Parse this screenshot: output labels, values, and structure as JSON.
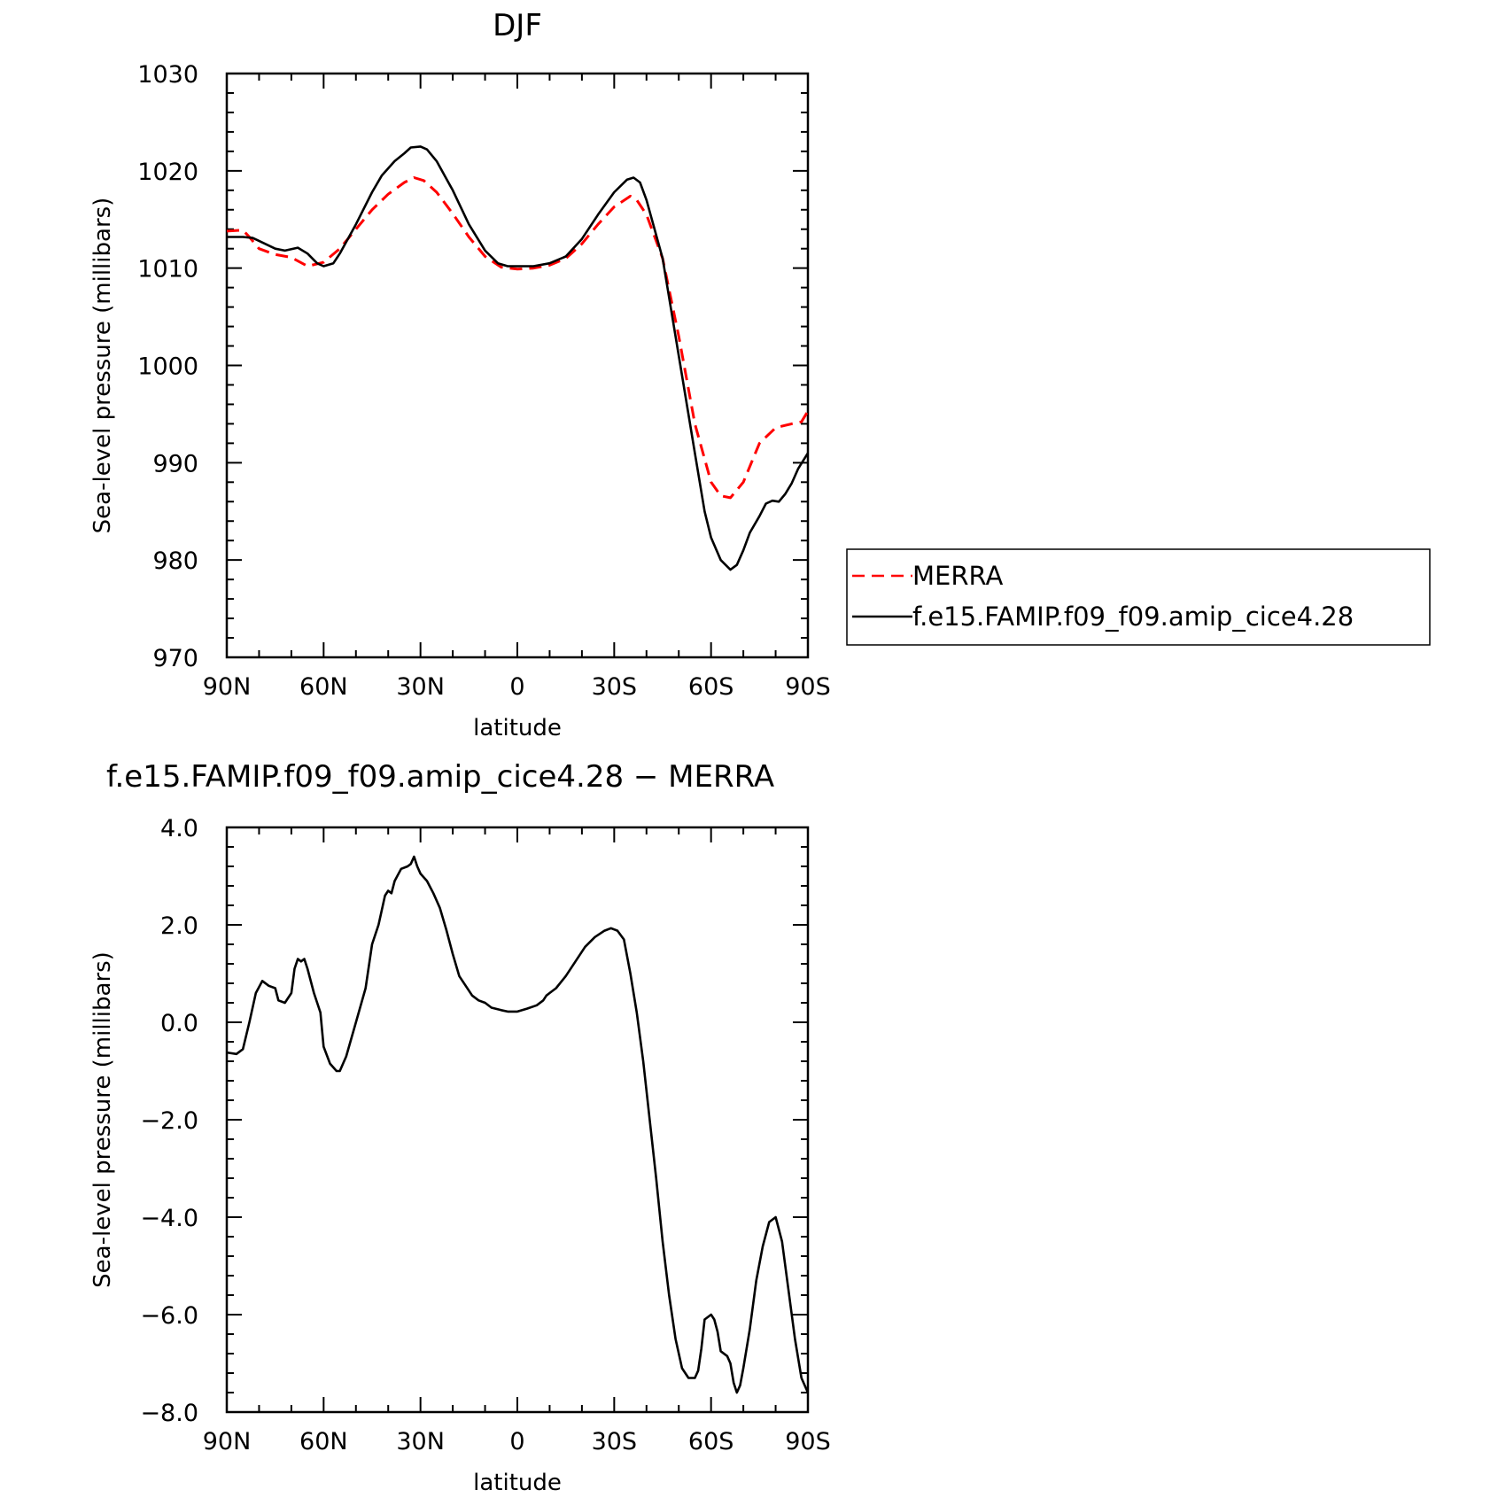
{
  "chart_data": [
    {
      "type": "line",
      "title": "DJF",
      "xlabel": "latitude",
      "ylabel": "Sea-level pressure (millibars)",
      "xlim": [
        90,
        -90
      ],
      "ylim": [
        970,
        1030
      ],
      "x_ticks": [
        90,
        60,
        30,
        0,
        -30,
        -60,
        -90
      ],
      "x_tick_labels": [
        "90N",
        "60N",
        "30N",
        "0",
        "30S",
        "60S",
        "90S"
      ],
      "y_ticks": [
        970,
        980,
        990,
        1000,
        1010,
        1020,
        1030
      ],
      "y_tick_labels": [
        "970",
        "980",
        "990",
        "1000",
        "1010",
        "1020",
        "1030"
      ],
      "grid": false,
      "legend": {
        "placement": "outside-right",
        "entries": [
          "MERRA",
          "f.e15.FAMIP.f09_f09.amip_cice4.28"
        ]
      },
      "series": [
        {
          "name": "MERRA",
          "color": "#ff0000",
          "style": "dashed",
          "points": [
            [
              90,
              1013.8
            ],
            [
              85,
              1013.9
            ],
            [
              83,
              1013.2
            ],
            [
              80,
              1012.0
            ],
            [
              75,
              1011.4
            ],
            [
              70,
              1011.1
            ],
            [
              65,
              1010.2
            ],
            [
              60,
              1010.6
            ],
            [
              55,
              1012.0
            ],
            [
              50,
              1014.0
            ],
            [
              45,
              1016.0
            ],
            [
              40,
              1017.6
            ],
            [
              35,
              1018.8
            ],
            [
              32,
              1019.3
            ],
            [
              29,
              1019.0
            ],
            [
              25,
              1017.8
            ],
            [
              20,
              1015.6
            ],
            [
              15,
              1013.2
            ],
            [
              10,
              1011.2
            ],
            [
              5,
              1010.1
            ],
            [
              0,
              1009.9
            ],
            [
              -5,
              1010.0
            ],
            [
              -10,
              1010.3
            ],
            [
              -15,
              1011.0
            ],
            [
              -20,
              1012.5
            ],
            [
              -25,
              1014.5
            ],
            [
              -30,
              1016.3
            ],
            [
              -35,
              1017.4
            ],
            [
              -37,
              1017.0
            ],
            [
              -40,
              1015.5
            ],
            [
              -45,
              1011.0
            ],
            [
              -50,
              1003.0
            ],
            [
              -55,
              994.0
            ],
            [
              -60,
              988.0
            ],
            [
              -63,
              986.6
            ],
            [
              -66,
              986.4
            ],
            [
              -70,
              988.0
            ],
            [
              -75,
              992.0
            ],
            [
              -80,
              993.6
            ],
            [
              -85,
              994.0
            ],
            [
              -88,
              994.2
            ],
            [
              -90,
              995.3
            ]
          ]
        },
        {
          "name": "f.e15.FAMIP.f09_f09.amip_cice4.28",
          "color": "#000000",
          "style": "solid",
          "points": [
            [
              90,
              1013.2
            ],
            [
              85,
              1013.2
            ],
            [
              82,
              1013.1
            ],
            [
              80,
              1012.8
            ],
            [
              75,
              1012.0
            ],
            [
              72,
              1011.8
            ],
            [
              68,
              1012.1
            ],
            [
              65,
              1011.5
            ],
            [
              62,
              1010.5
            ],
            [
              60,
              1010.2
            ],
            [
              57,
              1010.5
            ],
            [
              55,
              1011.5
            ],
            [
              50,
              1014.5
            ],
            [
              45,
              1017.8
            ],
            [
              42,
              1019.5
            ],
            [
              38,
              1021.0
            ],
            [
              35,
              1021.8
            ],
            [
              33,
              1022.4
            ],
            [
              30,
              1022.5
            ],
            [
              28,
              1022.2
            ],
            [
              25,
              1021.0
            ],
            [
              20,
              1018.0
            ],
            [
              15,
              1014.5
            ],
            [
              10,
              1011.8
            ],
            [
              6,
              1010.5
            ],
            [
              3,
              1010.2
            ],
            [
              0,
              1010.2
            ],
            [
              -5,
              1010.2
            ],
            [
              -10,
              1010.5
            ],
            [
              -15,
              1011.2
            ],
            [
              -20,
              1013.0
            ],
            [
              -25,
              1015.5
            ],
            [
              -30,
              1017.8
            ],
            [
              -34,
              1019.1
            ],
            [
              -36,
              1019.3
            ],
            [
              -38,
              1018.8
            ],
            [
              -40,
              1017.0
            ],
            [
              -45,
              1011.0
            ],
            [
              -50,
              1001.0
            ],
            [
              -55,
              991.0
            ],
            [
              -58,
              985.0
            ],
            [
              -60,
              982.3
            ],
            [
              -63,
              980.0
            ],
            [
              -66,
              979.0
            ],
            [
              -68,
              979.5
            ],
            [
              -70,
              981.0
            ],
            [
              -72,
              982.8
            ],
            [
              -75,
              984.5
            ],
            [
              -77,
              985.8
            ],
            [
              -79,
              986.1
            ],
            [
              -81,
              986.0
            ],
            [
              -83,
              986.8
            ],
            [
              -85,
              987.9
            ],
            [
              -87,
              989.4
            ],
            [
              -90,
              991.0
            ]
          ]
        }
      ]
    },
    {
      "type": "line",
      "title": "f.e15.FAMIP.f09_f09.amip_cice4.28 − MERRA",
      "xlabel": "latitude",
      "ylabel": "Sea-level pressure (millibars)",
      "xlim": [
        90,
        -90
      ],
      "ylim": [
        -8.0,
        4.0
      ],
      "x_ticks": [
        90,
        60,
        30,
        0,
        -30,
        -60,
        -90
      ],
      "x_tick_labels": [
        "90N",
        "60N",
        "30N",
        "0",
        "30S",
        "60S",
        "90S"
      ],
      "y_ticks": [
        -8,
        -6,
        -4,
        -2,
        0,
        2,
        4
      ],
      "y_tick_labels": [
        "−8.0",
        "−6.0",
        "−4.0",
        "−2.0",
        "0.0",
        "2.0",
        "4.0"
      ],
      "grid": false,
      "series": [
        {
          "color": "#000000",
          "style": "solid",
          "points": [
            [
              90,
              -0.62
            ],
            [
              87,
              -0.65
            ],
            [
              85,
              -0.55
            ],
            [
              83,
              0.0
            ],
            [
              81,
              0.6
            ],
            [
              79,
              0.85
            ],
            [
              77,
              0.75
            ],
            [
              75,
              0.7
            ],
            [
              74,
              0.45
            ],
            [
              72,
              0.4
            ],
            [
              70,
              0.6
            ],
            [
              69,
              1.1
            ],
            [
              68,
              1.3
            ],
            [
              67,
              1.25
            ],
            [
              66,
              1.3
            ],
            [
              65,
              1.1
            ],
            [
              63,
              0.6
            ],
            [
              61,
              0.2
            ],
            [
              60,
              -0.5
            ],
            [
              58,
              -0.85
            ],
            [
              56,
              -1.0
            ],
            [
              55,
              -1.0
            ],
            [
              53,
              -0.7
            ],
            [
              50,
              0.0
            ],
            [
              47,
              0.7
            ],
            [
              45,
              1.6
            ],
            [
              43,
              2.0
            ],
            [
              41,
              2.6
            ],
            [
              40,
              2.7
            ],
            [
              39,
              2.65
            ],
            [
              38,
              2.9
            ],
            [
              36,
              3.15
            ],
            [
              34,
              3.2
            ],
            [
              33,
              3.25
            ],
            [
              32,
              3.4
            ],
            [
              31,
              3.2
            ],
            [
              30,
              3.05
            ],
            [
              28,
              2.9
            ],
            [
              26,
              2.65
            ],
            [
              24,
              2.35
            ],
            [
              22,
              1.9
            ],
            [
              20,
              1.4
            ],
            [
              18,
              0.95
            ],
            [
              16,
              0.75
            ],
            [
              14,
              0.55
            ],
            [
              12,
              0.45
            ],
            [
              10,
              0.4
            ],
            [
              8,
              0.3
            ],
            [
              5,
              0.25
            ],
            [
              3,
              0.22
            ],
            [
              0,
              0.22
            ],
            [
              -3,
              0.28
            ],
            [
              -6,
              0.35
            ],
            [
              -8,
              0.45
            ],
            [
              -9,
              0.55
            ],
            [
              -10,
              0.6
            ],
            [
              -12,
              0.7
            ],
            [
              -15,
              0.95
            ],
            [
              -18,
              1.25
            ],
            [
              -21,
              1.55
            ],
            [
              -24,
              1.75
            ],
            [
              -27,
              1.88
            ],
            [
              -29,
              1.93
            ],
            [
              -31,
              1.88
            ],
            [
              -33,
              1.7
            ],
            [
              -35,
              1.0
            ],
            [
              -37,
              0.2
            ],
            [
              -39,
              -0.8
            ],
            [
              -41,
              -2.0
            ],
            [
              -43,
              -3.2
            ],
            [
              -45,
              -4.5
            ],
            [
              -47,
              -5.6
            ],
            [
              -49,
              -6.5
            ],
            [
              -51,
              -7.1
            ],
            [
              -53,
              -7.3
            ],
            [
              -55,
              -7.3
            ],
            [
              -56,
              -7.15
            ],
            [
              -57,
              -6.7
            ],
            [
              -58,
              -6.1
            ],
            [
              -60,
              -6.0
            ],
            [
              -61,
              -6.1
            ],
            [
              -62,
              -6.35
            ],
            [
              -63,
              -6.75
            ],
            [
              -65,
              -6.85
            ],
            [
              -66,
              -7.0
            ],
            [
              -67,
              -7.4
            ],
            [
              -68,
              -7.6
            ],
            [
              -69,
              -7.45
            ],
            [
              -70,
              -7.1
            ],
            [
              -72,
              -6.3
            ],
            [
              -74,
              -5.3
            ],
            [
              -76,
              -4.6
            ],
            [
              -78,
              -4.1
            ],
            [
              -80,
              -4.0
            ],
            [
              -82,
              -4.5
            ],
            [
              -84,
              -5.5
            ],
            [
              -86,
              -6.5
            ],
            [
              -88,
              -7.3
            ],
            [
              -90,
              -7.6
            ]
          ]
        }
      ]
    }
  ]
}
